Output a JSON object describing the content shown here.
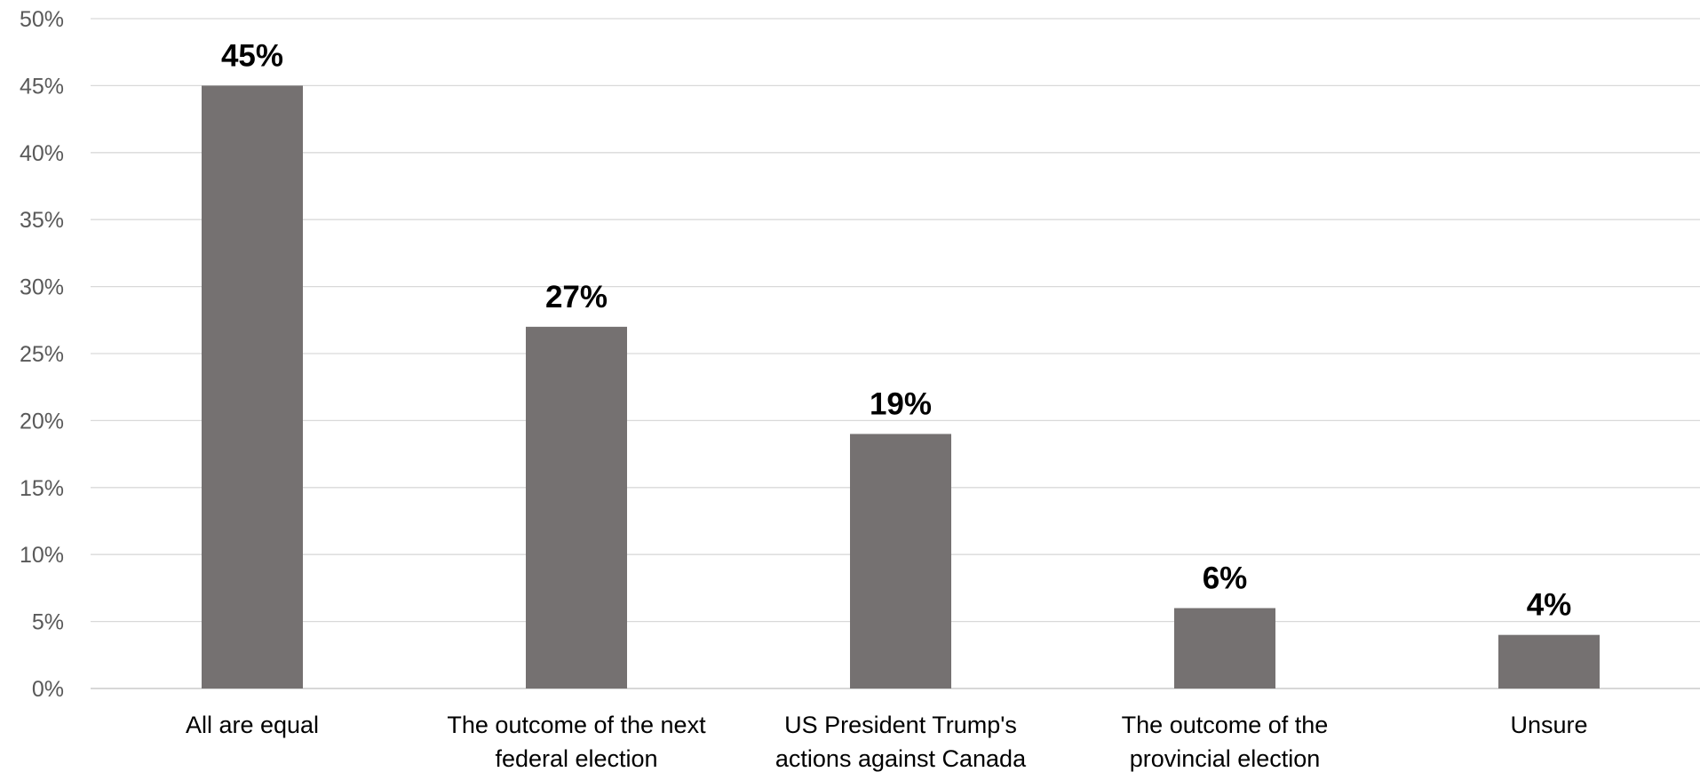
{
  "chart_data": {
    "type": "bar",
    "categories": [
      [
        "All are equal"
      ],
      [
        "The outcome of the next",
        "federal election"
      ],
      [
        "US President Trump's",
        "actions against Canada"
      ],
      [
        "The outcome of the",
        "provincial election"
      ],
      [
        "Unsure"
      ]
    ],
    "values": [
      45,
      27,
      19,
      6,
      4
    ],
    "data_labels": [
      "45%",
      "27%",
      "19%",
      "6%",
      "4%"
    ],
    "y_ticks": [
      "0%",
      "5%",
      "10%",
      "15%",
      "20%",
      "25%",
      "30%",
      "35%",
      "40%",
      "45%",
      "50%"
    ],
    "ylim": [
      0,
      50
    ],
    "grid": true,
    "legend": "none",
    "title": "",
    "xlabel": "",
    "ylabel": "",
    "colors": {
      "bar": "#757171",
      "grid": "#d9d9d9"
    }
  }
}
